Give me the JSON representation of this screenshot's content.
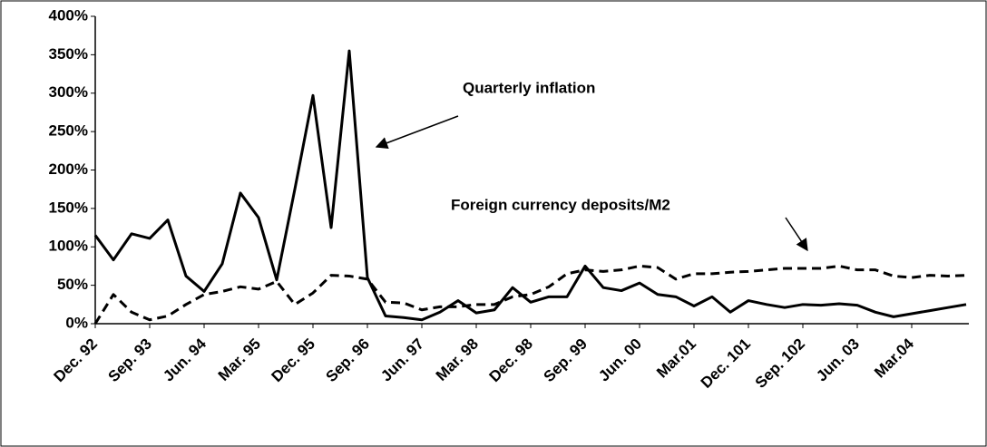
{
  "chart_data": {
    "type": "line",
    "categories": [
      "Dec. 92",
      null,
      null,
      "Sep. 93",
      null,
      null,
      "Jun. 94",
      null,
      null,
      "Mar. 95",
      null,
      null,
      "Dec. 95",
      null,
      null,
      "Sep. 96",
      null,
      null,
      "Jun. 97",
      null,
      null,
      "Mar. 98",
      null,
      null,
      "Dec. 98",
      null,
      null,
      "Sep. 99",
      null,
      null,
      "Jun. 00",
      null,
      null,
      "Mar.01",
      null,
      null,
      "Dec. 101",
      null,
      null,
      "Sep. 102",
      null,
      null,
      "Jun. 03",
      null,
      null,
      "Mar.04",
      null,
      null,
      null
    ],
    "series": [
      {
        "name": "Quarterly inflation",
        "color": "#000000",
        "dash": false,
        "values": [
          115,
          83,
          117,
          111,
          135,
          62,
          42,
          78,
          170,
          138,
          57,
          175,
          297,
          125,
          355,
          60,
          10,
          8,
          5,
          15,
          30,
          14,
          18,
          47,
          28,
          35,
          35,
          75,
          47,
          43,
          53,
          38,
          35,
          23,
          35,
          15,
          30,
          25,
          21,
          25,
          24,
          26,
          24,
          15,
          9,
          13,
          17,
          21,
          25
        ]
      },
      {
        "name": "Foreign currency deposits/M2",
        "color": "#000000",
        "dash": true,
        "values": [
          0,
          38,
          15,
          5,
          10,
          25,
          38,
          42,
          48,
          45,
          55,
          25,
          40,
          63,
          62,
          58,
          28,
          27,
          18,
          22,
          22,
          25,
          25,
          35,
          38,
          48,
          65,
          70,
          68,
          70,
          75,
          73,
          58,
          65,
          65,
          67,
          68,
          70,
          72,
          72,
          72,
          75,
          70,
          70,
          62,
          60,
          63,
          62,
          63
        ]
      }
    ],
    "ylim": [
      0,
      400
    ],
    "yticks": [
      {
        "value": 0,
        "label": "0%"
      },
      {
        "value": 50,
        "label": "50%"
      },
      {
        "value": 100,
        "label": "100%"
      },
      {
        "value": 150,
        "label": "150%"
      },
      {
        "value": 200,
        "label": "200%"
      },
      {
        "value": 250,
        "label": "250%"
      },
      {
        "value": 300,
        "label": "300%"
      },
      {
        "value": 350,
        "label": "350%"
      },
      {
        "value": 400,
        "label": "400%"
      }
    ],
    "grid": false
  }
}
